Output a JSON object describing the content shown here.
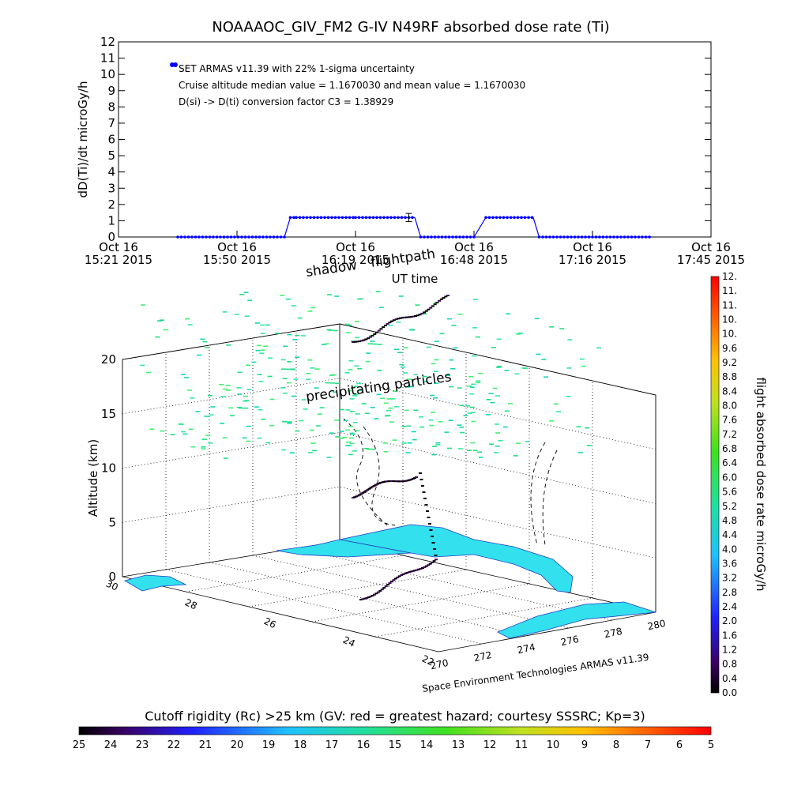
{
  "title": "NOAAAOC_GIV_FM2  G-IV    N49RF   absorbed dose rate (Ti)",
  "chart_data": [
    {
      "type": "line",
      "ylabel": "dD(Ti)/dt microGy/h",
      "xlabel": "UT time",
      "ylim": [
        0,
        12
      ],
      "yticks": [
        "0",
        "1",
        "2",
        "3",
        "4",
        "5",
        "6",
        "7",
        "8",
        "9",
        "10",
        "11",
        "12"
      ],
      "xticks": [
        {
          "line1": "Oct 16",
          "line2": "15:21 2015"
        },
        {
          "line1": "Oct 16",
          "line2": "15:50 2015"
        },
        {
          "line1": "Oct 16",
          "line2": "16:19 2015"
        },
        {
          "line1": "Oct 16",
          "line2": "16:48 2015"
        },
        {
          "line1": "Oct 16",
          "line2": "17:16 2015"
        },
        {
          "line1": "Oct 16",
          "line2": "17:45 2015"
        }
      ],
      "series": [
        {
          "name": "SET ARMAS v11.39 with 22% 1-sigma uncertainty",
          "color": "#0000ff",
          "x": [
            0.1,
            0.28,
            0.29,
            0.3,
            0.4,
            0.5,
            0.51,
            0.6,
            0.62,
            0.7,
            0.71,
            0.9
          ],
          "y": [
            0.0,
            0.0,
            1.2,
            1.2,
            1.2,
            1.2,
            0.0,
            0.0,
            1.2,
            1.2,
            0.0,
            0.0
          ]
        }
      ],
      "annotations": [
        "SET ARMAS v11.39 with 22% 1-sigma uncertainty",
        "Cruise altitude median value = 1.1670030 and mean value = 1.1670030",
        "D(si) -> D(ti) conversion factor C3 = 1.38929"
      ]
    },
    {
      "type": "scatter",
      "ylabel": "Altitude (km)",
      "zticks": [
        "0",
        "5",
        "10",
        "15",
        "20"
      ],
      "lat_ticks": [
        "22",
        "24",
        "26",
        "28",
        "30"
      ],
      "lon_ticks": [
        "270",
        "272",
        "274",
        "276",
        "278",
        "280"
      ],
      "labels": {
        "shadow": "shadow",
        "flightpath": "flightpath",
        "particles": "precipitating particles",
        "credit": "Space Environment Technologies ARMAS v11.39"
      },
      "colorbar": {
        "label": "flight absorbed dose rate microGy/h",
        "ticks": [
          "0.0",
          "0.4",
          "0.8",
          "1.2",
          "1.6",
          "2.0",
          "2.4",
          "2.8",
          "3.2",
          "3.6",
          "4.0",
          "4.4",
          "4.8",
          "5.2",
          "5.6",
          "6.0",
          "6.4",
          "6.8",
          "7.2",
          "7.6",
          "8.0",
          "8.4",
          "8.8",
          "9.2",
          "9.6",
          "10.",
          "10.",
          "11.",
          "11.",
          "12."
        ]
      }
    },
    {
      "type": "heatmap",
      "title": "Cutoff rigidity (Rc) >25 km (GV: red = greatest hazard; courtesy SSSRC; Kp=3)",
      "ticks": [
        "25",
        "24",
        "23",
        "22",
        "21",
        "20",
        "19",
        "18",
        "17",
        "16",
        "15",
        "14",
        "13",
        "12",
        "11",
        "10",
        "9",
        "8",
        "7",
        "6",
        "5"
      ]
    }
  ]
}
